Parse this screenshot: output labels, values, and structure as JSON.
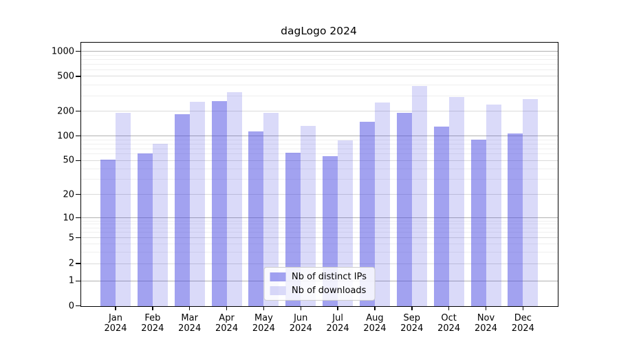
{
  "title": "dagLogo 2024",
  "chart_data": {
    "type": "bar",
    "title": "dagLogo 2024",
    "categories": [
      "Jan 2024",
      "Feb 2024",
      "Mar 2024",
      "Apr 2024",
      "May 2024",
      "Jun 2024",
      "Jul 2024",
      "Aug 2024",
      "Sep 2024",
      "Oct 2024",
      "Nov 2024",
      "Dec 2024"
    ],
    "series": [
      {
        "name": "Nb of distinct IPs",
        "color": "rgba(70,70,225,0.5)",
        "values": [
          51,
          61,
          183,
          260,
          113,
          62,
          56,
          150,
          190,
          130,
          91,
          107
        ]
      },
      {
        "name": "Nb of downloads",
        "color": "rgba(70,70,225,0.2)",
        "values": [
          190,
          80,
          255,
          330,
          190,
          132,
          89,
          250,
          385,
          290,
          240,
          275
        ]
      }
    ],
    "xlabel": "",
    "ylabel": "",
    "yticks": [
      0,
      1,
      2,
      5,
      10,
      20,
      50,
      100,
      200,
      500,
      1000
    ],
    "yscale": "symlog",
    "ylim": [
      0,
      1260
    ],
    "grid": true,
    "legend_position": "lower center"
  },
  "colors": {
    "bar_dark": "rgba(70,70,225,0.5)",
    "bar_light": "rgba(70,70,225,0.2)",
    "grid_major": "#b0b0b0",
    "grid_labeled": "#dadada",
    "grid_minor": "#efefef",
    "axis": "#000000",
    "background": "#ffffff"
  }
}
